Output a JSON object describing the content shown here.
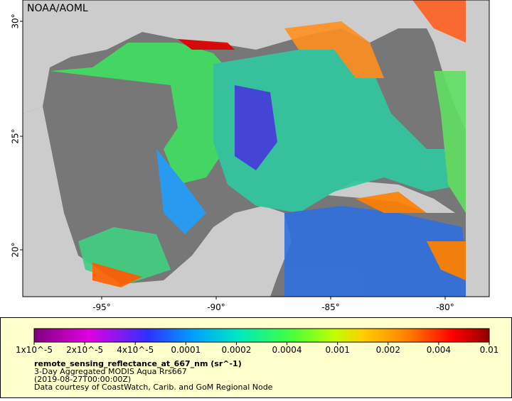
{
  "map": {
    "credit": "NOAA/AOML",
    "lat_labels": [
      "30°",
      "25°",
      "20°"
    ],
    "lon_labels": [
      "-95°",
      "-90°",
      "-85°",
      "-80°"
    ]
  },
  "legend": {
    "ticks": [
      "1x10^-5",
      "2x10^-5",
      "4x10^-5",
      "0.0001",
      "0.0002",
      "0.0004",
      "0.001",
      "0.002",
      "0.004",
      "0.01"
    ],
    "title": "remote_sensing_reflectance_at_667_nm (sr^-1)",
    "lines": [
      "3-Day Aggregated MODIS Aqua Rrs667",
      "(2019-08-27T00:00:00Z)",
      "Data courtesy of CoastWatch, Carib. and GoM Regional Node"
    ]
  }
}
